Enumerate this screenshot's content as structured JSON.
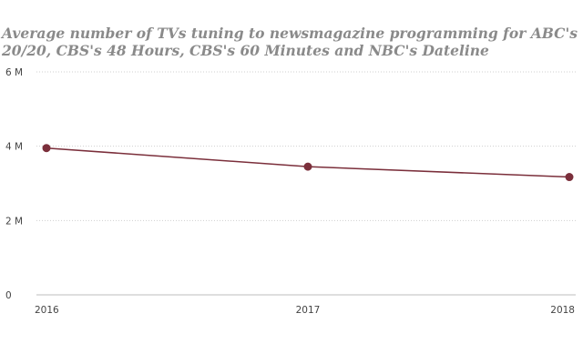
{
  "chart_data": {
    "type": "line",
    "title_lines": [
      "Average number of TVs tuning to newsmagazine programming for ABC's",
      "20/20, CBS's 48 Hours, CBS's 60 Minutes and NBC's Dateline"
    ],
    "xlabel": "",
    "ylabel": "",
    "x": [
      "2016",
      "2017",
      "2018"
    ],
    "series": [
      {
        "values": [
          3950000,
          3450000,
          3170000
        ]
      }
    ],
    "ylim": [
      0,
      6000000
    ],
    "y_ticks": [
      {
        "value": 0,
        "label": "0"
      },
      {
        "value": 2000000,
        "label": "2 M"
      },
      {
        "value": 4000000,
        "label": "4 M"
      },
      {
        "value": 6000000,
        "label": "6 M"
      }
    ],
    "grid": "horizontal-dotted",
    "colors": {
      "series": "#7b2f3b",
      "grid": "#cfcfcf",
      "baseline": "#bdbdbd"
    }
  }
}
